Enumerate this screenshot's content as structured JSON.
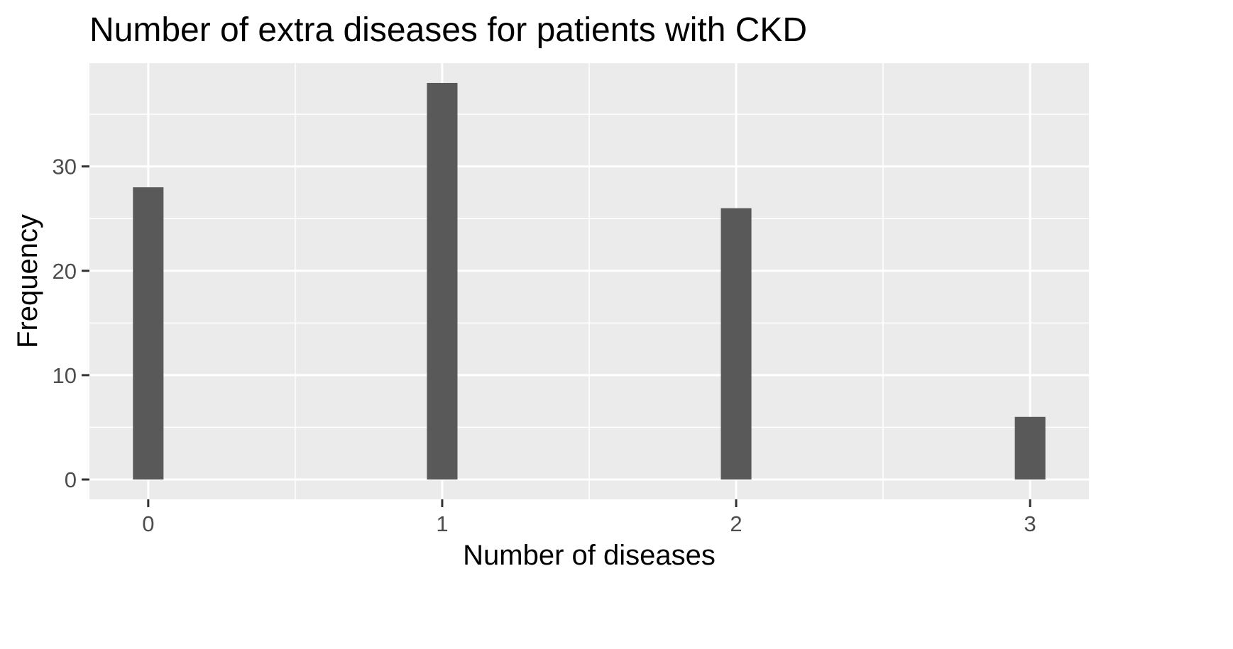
{
  "chart_data": {
    "type": "bar",
    "title": "Number of extra diseases for patients with CKD",
    "xlabel": "Number of diseases",
    "ylabel": "Frequency",
    "x": [
      0,
      1,
      2,
      3
    ],
    "values": [
      28,
      38,
      26,
      6
    ],
    "x_ticks": [
      "0",
      "1",
      "2",
      "3"
    ],
    "y_ticks": [
      "0",
      "10",
      "20",
      "30"
    ],
    "xlim": [
      -0.2,
      3.2
    ],
    "ylim": [
      -1.9,
      39.9
    ],
    "grid": true,
    "colors": {
      "panel_background": "#ebebeb",
      "bar_fill": "#595959",
      "grid": "#ffffff"
    }
  }
}
